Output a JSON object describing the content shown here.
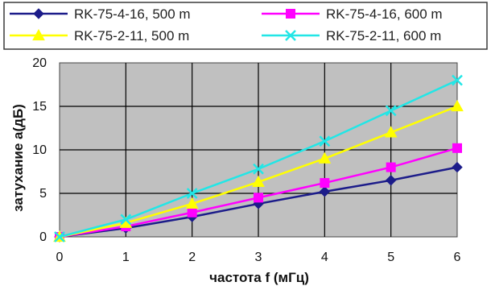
{
  "chart_data": {
    "type": "line",
    "xlabel": "частота f (мГц)",
    "ylabel": "затухание  a(дБ)",
    "x": [
      0,
      1,
      2,
      3,
      4,
      5,
      6
    ],
    "xlim": [
      0,
      6
    ],
    "ylim": [
      0,
      20
    ],
    "xticks": [
      "0",
      "1",
      "2",
      "3",
      "4",
      "5",
      "6"
    ],
    "yticks": [
      "0",
      "5",
      "10",
      "15",
      "20"
    ],
    "grid": true,
    "legend_position": "top",
    "series": [
      {
        "name": "RK-75-4-16, 500 m",
        "values": [
          0,
          1.0,
          2.3,
          3.8,
          5.2,
          6.5,
          8.0
        ],
        "color": "#1c1c8a",
        "marker": "diamond"
      },
      {
        "name": "RK-75-4-16, 600 m",
        "values": [
          0,
          1.2,
          2.8,
          4.5,
          6.2,
          8.0,
          10.2
        ],
        "color": "#ff00ff",
        "marker": "square"
      },
      {
        "name": "RK-75-2-11, 500 m",
        "values": [
          0,
          1.6,
          3.8,
          6.3,
          9.0,
          12.0,
          15.0
        ],
        "color": "#ffff00",
        "marker": "triangle"
      },
      {
        "name": "RK-75-2-11, 600 m",
        "values": [
          0,
          2.0,
          5.0,
          7.8,
          11.0,
          14.5,
          18.0
        ],
        "color": "#22e6e6",
        "marker": "x"
      }
    ]
  }
}
